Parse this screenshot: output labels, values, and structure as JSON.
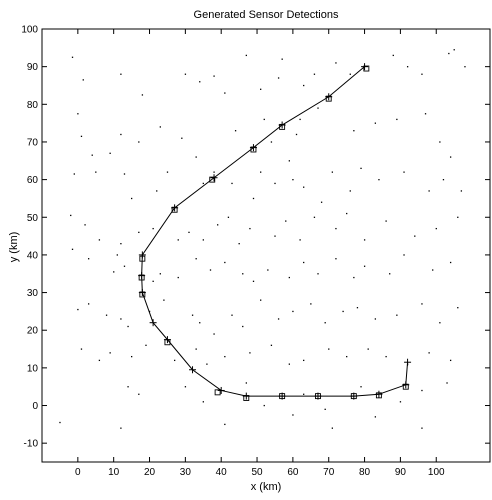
{
  "chart_data": {
    "type": "scatter",
    "title": "Generated Sensor Detections",
    "xlabel": "x (km)",
    "ylabel": "y (km)",
    "xlim": [
      -10,
      115
    ],
    "ylim": [
      -15,
      100
    ],
    "xticks": [
      0,
      10,
      20,
      30,
      40,
      50,
      60,
      70,
      80,
      90,
      100
    ],
    "yticks": [
      -10,
      0,
      10,
      20,
      30,
      40,
      50,
      60,
      70,
      80,
      90,
      100
    ],
    "grid": false,
    "series": [
      {
        "role": "track",
        "marker": "+",
        "line": "solid",
        "x": [
          92,
          91.5,
          84,
          77,
          67,
          57,
          47,
          40,
          32,
          25,
          21,
          18,
          17.8,
          18,
          27,
          38,
          49,
          57,
          70,
          80
        ],
        "y": [
          11.5,
          5.5,
          3,
          2.5,
          2.5,
          2.5,
          2.5,
          4,
          9.5,
          17.5,
          22,
          30,
          34.5,
          40,
          52.5,
          60.5,
          68.5,
          74.5,
          82,
          90
        ]
      },
      {
        "role": "detections",
        "marker": "square",
        "x": [
          91.5,
          84,
          77,
          67,
          57,
          47,
          39,
          25,
          18,
          17.8,
          18,
          27,
          37.5,
          49,
          57,
          70,
          80.5
        ],
        "y": [
          5,
          2.7,
          2.5,
          2.5,
          2.5,
          2,
          3.5,
          16.8,
          29.5,
          34,
          39,
          52,
          60,
          68,
          74,
          81.5,
          89.5
        ]
      },
      {
        "role": "clutter",
        "marker": "dot",
        "x": [
          -1.5,
          1.5,
          12,
          18,
          30,
          34,
          38,
          41,
          47,
          51,
          56,
          57,
          63,
          66,
          72,
          76,
          88,
          92,
          96,
          103.5,
          105,
          108,
          0,
          1,
          4,
          12,
          17,
          23,
          29,
          33,
          44,
          52,
          54,
          61,
          62,
          67,
          77,
          83,
          89,
          97,
          101,
          104,
          -1,
          5,
          9,
          13,
          15,
          22,
          25,
          35,
          38,
          43,
          49,
          51,
          55,
          59,
          60,
          63,
          68,
          71,
          76,
          79,
          84,
          91,
          98,
          102,
          107,
          -2,
          2,
          6,
          12,
          17,
          21,
          28,
          31,
          35,
          39,
          42,
          45,
          48,
          55,
          58,
          62,
          66,
          72,
          75,
          80,
          86,
          94,
          100,
          106,
          -1.5,
          3,
          10,
          11,
          13,
          21,
          23,
          28,
          33,
          37,
          41,
          46,
          49,
          53,
          59,
          63,
          67,
          72,
          77,
          80,
          87,
          91,
          99,
          104,
          0,
          3,
          8,
          12,
          14,
          20,
          24,
          32,
          34,
          38,
          43,
          46,
          51,
          56,
          60,
          65,
          69,
          74,
          78,
          83,
          89,
          96,
          101,
          106,
          1,
          6,
          9,
          15,
          19,
          27,
          33,
          36,
          41,
          48,
          54,
          59,
          63,
          70,
          75,
          81,
          86,
          92,
          98,
          104,
          14,
          17,
          30,
          35,
          47,
          52,
          63,
          69,
          79,
          90,
          96,
          103,
          -5,
          12,
          41,
          60,
          71,
          83,
          96
        ],
        "y": [
          92.5,
          86.5,
          88,
          82.5,
          88,
          86,
          87.5,
          83,
          93,
          84,
          87,
          92,
          85,
          88,
          91,
          88,
          93,
          90,
          88,
          93.5,
          94.5,
          90,
          77.5,
          71.5,
          66.5,
          72,
          70,
          74,
          71,
          66,
          73,
          76,
          70,
          72,
          76,
          79,
          73,
          75,
          76,
          77.5,
          70,
          66,
          61.5,
          62,
          67,
          61.5,
          55,
          57,
          62,
          59,
          62,
          59,
          55,
          62,
          59,
          65,
          60,
          58,
          54,
          62,
          57,
          63,
          60,
          62,
          57,
          60,
          57,
          50.5,
          48,
          44,
          43,
          46,
          47,
          44,
          46,
          44,
          48,
          50,
          43,
          47,
          45,
          49,
          44,
          50,
          47,
          51,
          44,
          49,
          45,
          47,
          50,
          41.5,
          39,
          35.5,
          40,
          37,
          33,
          35,
          34,
          39,
          36,
          38,
          35,
          33,
          36,
          34,
          38,
          35,
          39,
          34,
          37,
          35,
          40,
          36,
          38,
          25.5,
          27,
          24,
          23,
          21,
          25,
          28,
          24,
          22,
          19,
          24,
          21,
          28,
          23,
          25,
          27,
          22,
          25,
          26,
          23,
          24,
          27,
          22,
          26,
          15,
          12,
          14,
          13,
          16,
          12,
          15,
          11,
          13,
          14,
          16,
          11,
          12,
          15,
          13,
          15,
          13,
          11,
          14,
          12,
          5,
          3,
          5,
          1,
          6,
          0,
          3,
          -1,
          5,
          1,
          4,
          6,
          -4.5,
          -6,
          -5,
          -2.5,
          -6,
          -3,
          -6
        ]
      }
    ]
  }
}
